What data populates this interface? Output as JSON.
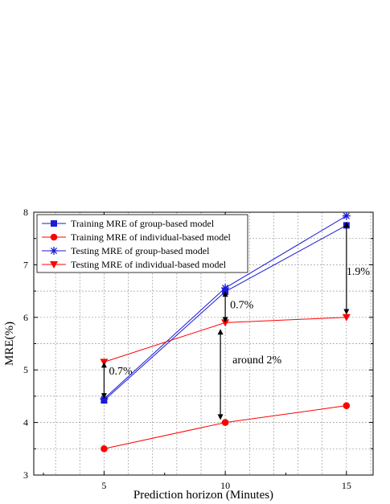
{
  "chart_data": {
    "type": "line",
    "x": [
      5,
      10,
      15
    ],
    "xlabel": "Prediction horizon (Minutes)",
    "ylabel": "MRE(%)",
    "xlim": [
      2.1,
      16.1
    ],
    "ylim": [
      3,
      8
    ],
    "xticks": [
      "5",
      "10",
      "15"
    ],
    "yticks": [
      "3",
      "4",
      "5",
      "6",
      "7",
      "8"
    ],
    "grid": true,
    "legend_position": "top-left",
    "series": [
      {
        "name": "Training MRE of group-based model",
        "values": [
          4.42,
          6.49,
          7.75
        ],
        "color": "#1a1adb",
        "marker": "square"
      },
      {
        "name": "Training MRE of individual-based model",
        "values": [
          3.5,
          4.0,
          4.32
        ],
        "color": "#ff0000",
        "marker": "circle"
      },
      {
        "name": "Testing MRE of group-based model",
        "values": [
          4.45,
          6.56,
          7.93
        ],
        "color": "#1a1adb",
        "marker": "asterisk"
      },
      {
        "name": "Testing MRE of individual-based model",
        "values": [
          5.15,
          5.9,
          6.0
        ],
        "color": "#ff0000",
        "marker": "triangle-down"
      }
    ],
    "annotations": [
      {
        "text": "0.7%",
        "arrow_x": 5,
        "y_from": 4.45,
        "y_to": 5.15,
        "text_x": 5.2,
        "text_y": 4.99
      },
      {
        "text": "0.7%",
        "arrow_x": 10,
        "y_from": 5.9,
        "y_to": 6.5,
        "text_x": 10.2,
        "text_y": 6.25
      },
      {
        "text": "around 2%",
        "arrow_x": 9.8,
        "y_from": 4.05,
        "y_to": 5.78,
        "text_x": 10.3,
        "text_y": 5.2
      },
      {
        "text": "1.9%",
        "arrow_x": 15,
        "y_from": 6.05,
        "y_to": 7.82,
        "text_x": 15.0,
        "text_y": 6.88
      }
    ]
  }
}
